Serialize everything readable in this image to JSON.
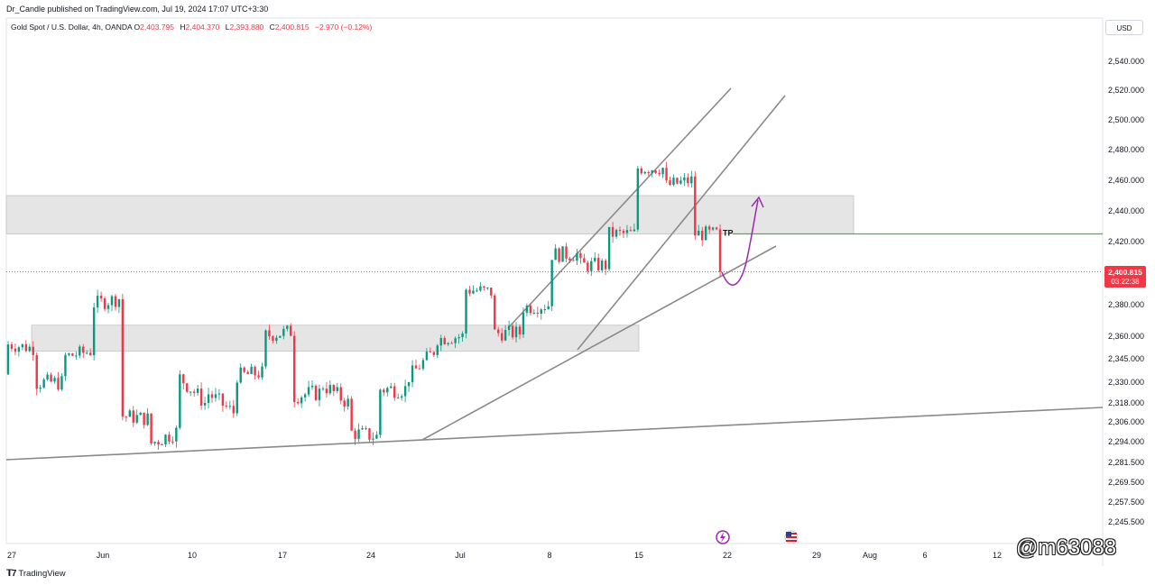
{
  "header": {
    "publish_line": "Dr_Candle published on TradingView.com, Jul 19, 2024 17:07 UTC+3:30",
    "symbol": "Gold Spot / U.S. Dollar, 4h, OANDA",
    "ohlc": {
      "o_key": "O",
      "o_val": "2,403.795",
      "h_key": "H",
      "h_val": "2,404.370",
      "l_key": "L",
      "l_val": "2,393.880",
      "c_key": "C",
      "c_val": "2,400.815",
      "change": "−2.970 (−0.12%)"
    },
    "currency": "USD"
  },
  "price_tag": {
    "price": "2,400.815",
    "countdown": "03:22:38",
    "color": "#f23645"
  },
  "tp_label": "TP",
  "logo_text": "TradingView",
  "watermark": "@m63088",
  "icons": [
    "lightning-event-icon",
    "us-flag-event-icon"
  ],
  "colors": {
    "up": "#089981",
    "down": "#f23645",
    "zone": "#d3d3d3",
    "tp_line": "#4caf50",
    "arrow": "#9c27b0",
    "trendline": "#8a8a8a"
  },
  "chart_data": {
    "type": "candlestick",
    "symbol": "XAUUSD",
    "timeframe": "4h",
    "y_ticks": [
      2540,
      2520,
      2500,
      2480,
      2460,
      2440,
      2420,
      2380,
      2360,
      2345,
      2330,
      2318,
      2306,
      2294,
      2281.5,
      2269.5,
      2257.5,
      2245.5
    ],
    "y_tick_labels": [
      "2,540.000",
      "2,520.000",
      "2,500.000",
      "2,480.000",
      "2,460.000",
      "2,440.000",
      "2,420.000",
      "2,380.000",
      "2,360.000",
      "2,345.000",
      "2,330.000",
      "2,318.000",
      "2,306.000",
      "2,294.000",
      "2,281.500",
      "2,269.500",
      "2,257.500",
      "2,245.500"
    ],
    "x_labels": [
      "27",
      "Jun",
      "10",
      "17",
      "24",
      "Jul",
      "8",
      "15",
      "22",
      "29",
      "Aug",
      "6",
      "12"
    ],
    "last_price": 2400.815,
    "series": [
      {
        "date": "May 27",
        "open": 2335,
        "close": 2355
      },
      {
        "date": "May 31",
        "open": 2352,
        "close": 2330
      },
      {
        "date": "Jun 4",
        "open": 2330,
        "close": 2346
      },
      {
        "date": "Jun 6",
        "open": 2350,
        "close": 2380
      },
      {
        "date": "Jun 7",
        "open": 2384,
        "close": 2310
      },
      {
        "date": "Jun 10",
        "open": 2308,
        "close": 2292
      },
      {
        "date": "Jun 12",
        "open": 2300,
        "close": 2335
      },
      {
        "date": "Jun 14",
        "open": 2318,
        "close": 2325
      },
      {
        "date": "Jun 17",
        "open": 2312,
        "close": 2334
      },
      {
        "date": "Jun 20",
        "open": 2336,
        "close": 2360
      },
      {
        "date": "Jun 21",
        "open": 2363,
        "close": 2322
      },
      {
        "date": "Jun 24",
        "open": 2324,
        "close": 2330
      },
      {
        "date": "Jun 26",
        "open": 2318,
        "close": 2300
      },
      {
        "date": "Jun 28",
        "open": 2297,
        "close": 2326
      },
      {
        "date": "Jul 2",
        "open": 2326,
        "close": 2331
      },
      {
        "date": "Jul 4",
        "open": 2350,
        "close": 2358
      },
      {
        "date": "Jul 5",
        "open": 2360,
        "close": 2390
      },
      {
        "date": "Jul 8",
        "open": 2388,
        "close": 2362
      },
      {
        "date": "Jul 10",
        "open": 2362,
        "close": 2378
      },
      {
        "date": "Jul 11",
        "open": 2380,
        "close": 2412
      },
      {
        "date": "Jul 12",
        "open": 2412,
        "close": 2405
      },
      {
        "date": "Jul 15",
        "open": 2405,
        "close": 2425
      },
      {
        "date": "Jul 16",
        "open": 2425,
        "close": 2468
      },
      {
        "date": "Jul 17",
        "open": 2468,
        "close": 2456
      },
      {
        "date": "Jul 18",
        "open": 2460,
        "close": 2425
      },
      {
        "date": "Jul 19",
        "open": 2425,
        "close": 2400.815
      }
    ],
    "zones": [
      {
        "name": "upper-resistance-zone",
        "from": 2425,
        "to": 2450
      },
      {
        "name": "lower-support-zone",
        "from": 2350,
        "to": 2367
      }
    ],
    "trendlines": [
      "long-term-support",
      "channel-upper",
      "channel-lower",
      "short-term-support"
    ],
    "annotations": [
      {
        "type": "horizontal-line",
        "label": "TP",
        "price": 2425
      },
      {
        "type": "curved-arrow",
        "direction": "up"
      }
    ]
  }
}
